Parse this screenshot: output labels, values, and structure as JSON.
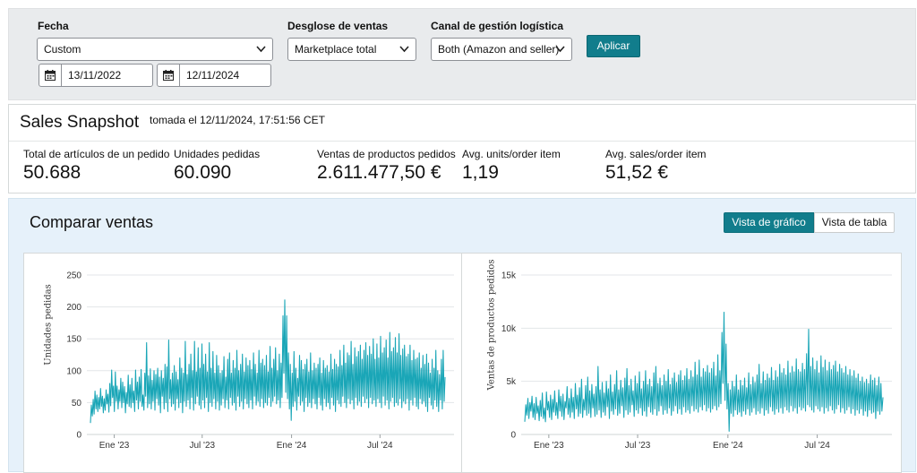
{
  "filters": {
    "fecha": {
      "label": "Fecha",
      "value": "Custom",
      "start": "13/11/2022",
      "end": "12/11/2024"
    },
    "desglose": {
      "label": "Desglose de ventas",
      "value": "Marketplace total"
    },
    "canal": {
      "label": "Canal de gestión logística",
      "value": "Both (Amazon and seller)"
    },
    "apply_label": "Aplicar"
  },
  "snapshot": {
    "title": "Sales Snapshot",
    "taken": "tomada el 12/11/2024, 17:51:56 CET",
    "metrics": [
      {
        "label": "Total de artículos de un pedido",
        "value": "50.688"
      },
      {
        "label": "Unidades pedidas",
        "value": "60.090"
      },
      {
        "label": "Ventas de productos pedidos",
        "value": "2.611.477,50 €"
      },
      {
        "label": "Avg. units/order item",
        "value": "1,19"
      },
      {
        "label": "Avg. sales/order item",
        "value": "51,52 €"
      }
    ]
  },
  "compare": {
    "title": "Comparar ventas",
    "view_graph": "Vista de gráfico",
    "view_table": "Vista de tabla"
  },
  "colors": {
    "accent": "#117d8c",
    "series": "#1aa6b7"
  },
  "chart_data": [
    {
      "type": "line",
      "ylabel": "Unidades pedidas",
      "ylim": [
        0,
        250
      ],
      "yticks": [
        "0",
        "50",
        "100",
        "150",
        "200",
        "250"
      ],
      "xticks": [
        "Ene '23",
        "Jul '23",
        "Ene '24",
        "Jul '24"
      ],
      "x_range": [
        "2022-11-13",
        "2024-11-12"
      ],
      "grid": true,
      "series": [
        {
          "values": [
            18,
            46,
            29,
            55,
            32,
            68,
            40,
            62,
            36,
            58,
            40,
            72,
            44,
            60,
            34,
            56,
            38,
            70,
            48,
            63,
            35,
            80,
            45,
            101,
            58,
            76,
            36,
            98,
            52,
            76,
            40,
            70,
            52,
            88,
            42,
            82,
            50,
            75,
            34,
            66,
            48,
            93,
            44,
            78,
            42,
            88,
            50,
            68,
            36,
            101,
            54,
            82,
            40,
            90,
            52,
            102,
            44,
            62,
            38,
            96,
            60,
            144,
            42,
            92,
            48,
            103,
            40,
            85,
            52,
            100,
            38,
            94,
            56,
            104,
            46,
            90,
            34,
            100,
            60,
            88,
            40,
            110,
            50,
            106,
            36,
            148,
            56,
            86,
            44,
            96,
            48,
            108,
            38,
            98,
            56,
            86,
            42,
            120,
            50,
            104,
            34,
            96,
            52,
            146,
            44,
            94,
            54,
            110,
            40,
            126,
            58,
            100,
            38,
            146,
            48,
            98,
            60,
            136,
            46,
            104,
            40,
            142,
            54,
            110,
            42,
            126,
            58,
            98,
            36,
            144,
            50,
            104,
            44,
            130,
            56,
            96,
            40,
            124,
            52,
            108,
            38,
            96,
            46,
            100,
            56,
            122,
            42,
            90,
            54,
            118,
            40,
            128,
            58,
            96,
            46,
            116,
            50,
            104,
            38,
            132,
            60,
            100,
            44,
            110,
            52,
            126,
            40,
            98,
            56,
            120,
            48,
            108,
            42,
            116,
            54,
            102,
            40,
            128,
            60,
            110,
            46,
            96,
            52,
            132,
            44,
            112,
            56,
            118,
            42,
            108,
            50,
            124,
            46,
            98,
            58,
            138,
            44,
            104,
            52,
            118,
            60,
            136,
            48,
            100,
            54,
            126,
            42,
            112,
            58,
            186,
            96,
            211,
            66,
            186,
            56,
            128,
            40,
            110,
            22,
            96,
            44,
            130,
            52,
            104,
            38,
            88,
            60,
            124,
            46,
            116,
            52,
            102,
            36,
            110,
            58,
            118,
            44,
            98,
            50,
            128,
            42,
            100,
            56,
            112,
            48,
            104,
            40,
            110,
            58,
            120,
            46,
            96,
            38,
            116,
            56,
            104,
            44,
            108,
            50,
            98,
            40,
            126,
            58,
            102,
            46,
            118,
            36,
            110,
            54,
            106,
            48,
            132,
            44,
            108,
            60,
            140,
            50,
            112,
            42,
            128,
            56,
            124,
            48,
            146,
            54,
            110,
            40,
            136,
            58,
            122,
            46,
            130,
            52,
            140,
            44,
            118,
            60,
            132,
            50,
            144,
            56,
            124,
            42,
            138,
            58,
            126,
            48,
            150,
            54,
            118,
            44,
            142,
            56,
            120,
            50,
            154,
            42,
            128,
            60,
            136,
            46,
            148,
            54,
            120,
            40,
            160,
            52,
            130,
            58,
            136,
            44,
            152,
            50,
            128,
            46,
            158,
            56,
            124,
            42,
            134,
            52,
            140,
            48,
            122,
            56,
            126,
            38,
            140,
            54,
            116,
            46,
            132,
            58,
            118,
            44,
            120,
            40,
            128,
            56,
            104,
            48,
            124,
            52,
            110,
            44,
            126,
            36,
            112,
            58,
            96,
            46,
            118,
            40,
            104,
            54,
            132,
            44,
            100,
            36,
            94,
            54,
            118,
            40,
            132,
            52,
            90
          ]
        }
      ]
    },
    {
      "type": "line",
      "ylabel": "Ventas de productos pedidos",
      "ylim": [
        0,
        15000
      ],
      "yticks": [
        "0",
        "5k",
        "10k",
        "15k"
      ],
      "xticks": [
        "Ene '23",
        "Jul '23",
        "Ene '24",
        "Jul '24"
      ],
      "x_range": [
        "2022-11-13",
        "2024-11-12"
      ],
      "grid": true,
      "series": [
        {
          "values": [
            1200,
            2800,
            1800,
            3400,
            1500,
            3000,
            2200,
            3600,
            1600,
            2900,
            1400,
            3500,
            2000,
            2700,
            1300,
            3200,
            1700,
            3900,
            1500,
            2500,
            1200,
            4000,
            2300,
            3100,
            1600,
            3700,
            1400,
            3300,
            2100,
            4100,
            1800,
            3000,
            1500,
            4200,
            2200,
            3600,
            1700,
            3800,
            1400,
            3100,
            2500,
            4500,
            1900,
            3400,
            1600,
            4300,
            2100,
            3500,
            1500,
            4800,
            2400,
            3700,
            1700,
            4400,
            2000,
            5200,
            1600,
            3300,
            2300,
            4600,
            1800,
            5400,
            2000,
            4100,
            1600,
            4700,
            2500,
            3800,
            1700,
            4500,
            1900,
            6400,
            2300,
            4200,
            1600,
            4900,
            2100,
            3900,
            1800,
            5000,
            2600,
            4300,
            1500,
            5600,
            2200,
            4000,
            1900,
            4700,
            2400,
            6000,
            1800,
            4200,
            2000,
            5100,
            2700,
            4400,
            1600,
            5300,
            2300,
            6200,
            1900,
            4600,
            2100,
            5200,
            2800,
            4100,
            1700,
            5500,
            2300,
            4800,
            2000,
            5900,
            2500,
            4300,
            1800,
            5000,
            2200,
            6000,
            1700,
            4700,
            2600,
            5200,
            2100,
            4500,
            1900,
            5800,
            2400,
            6400,
            1800,
            4800,
            2200,
            5300,
            2700,
            4600,
            1900,
            5600,
            2300,
            5000,
            2000,
            6100,
            2500,
            4700,
            1800,
            5300,
            2200,
            5800,
            2700,
            4900,
            2000,
            5600,
            2400,
            6000,
            1900,
            5100,
            2600,
            5500,
            2100,
            6200,
            2300,
            5200,
            2000,
            6000,
            2700,
            5400,
            2200,
            6800,
            2400,
            5600,
            2100,
            7000,
            2600,
            5400,
            2300,
            6200,
            2800,
            5900,
            2200,
            6500,
            2500,
            5800,
            2100,
            6200,
            2400,
            6800,
            2700,
            5500,
            2300,
            7500,
            2600,
            6000,
            2900,
            9600,
            4800,
            11500,
            3200,
            8500,
            2400,
            4800,
            300,
            4200,
            2000,
            5000,
            1700,
            4500,
            2300,
            5600,
            1900,
            4200,
            2100,
            5100,
            1700,
            4600,
            2200,
            5300,
            1900,
            4400,
            2400,
            5800,
            1800,
            4700,
            2100,
            5400,
            2500,
            4900,
            1900,
            5600,
            2200,
            6600,
            2000,
            4800,
            2500,
            5900,
            1800,
            5100,
            2300,
            5700,
            2000,
            5300,
            2600,
            6300,
            2200,
            5100,
            1900,
            6000,
            2400,
            5400,
            2100,
            6600,
            2500,
            5800,
            2000,
            6200,
            2600,
            5600,
            2300,
            6900,
            2100,
            5800,
            2700,
            6400,
            2200,
            5900,
            2500,
            7100,
            2000,
            6100,
            2600,
            5900,
            2300,
            6700,
            2500,
            6100,
            2200,
            7600,
            2800,
            9900,
            2600,
            6400,
            2300,
            7200,
            2100,
            6100,
            2700,
            6900,
            2400,
            5800,
            2200,
            7400,
            2600,
            6300,
            2000,
            7000,
            2500,
            6000,
            2200,
            6800,
            2700,
            6100,
            2300,
            6500,
            2000,
            6900,
            2400,
            5900,
            2800,
            6600,
            2100,
            6200,
            2500,
            5800,
            2000,
            6400,
            2300,
            5600,
            2600,
            6100,
            2000,
            5500,
            2400,
            6000,
            1800,
            5300,
            2300,
            5700,
            2000,
            5000,
            2400,
            5400,
            1800,
            4900,
            2200,
            5200,
            1700,
            4800,
            2300,
            5600,
            2000,
            5100,
            2100,
            5300,
            1500,
            4600,
            2200,
            5400,
            1900,
            4800,
            2200,
            3500
          ]
        }
      ]
    }
  ]
}
